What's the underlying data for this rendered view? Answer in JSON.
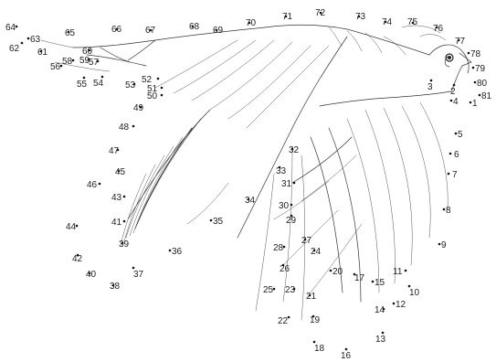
{
  "puzzle": {
    "line_color": "#333333",
    "dot_color": "#111111",
    "labels": [
      "1",
      "2",
      "3",
      "4",
      "5",
      "6",
      "7",
      "8",
      "9",
      "10",
      "11",
      "12",
      "13",
      "14",
      "15",
      "16",
      "17",
      "18",
      "19",
      "20",
      "21",
      "22",
      "23",
      "24",
      "25",
      "26",
      "27",
      "28",
      "29",
      "30",
      "31",
      "32",
      "33",
      "34",
      "35",
      "36",
      "37",
      "38",
      "39",
      "40",
      "41",
      "42",
      "43",
      "44",
      "45",
      "46",
      "47",
      "48",
      "49",
      "50",
      "51",
      "52",
      "53",
      "54",
      "55",
      "56",
      "57",
      "58",
      "59",
      "60",
      "61",
      "62",
      "63",
      "64",
      "65",
      "66",
      "67",
      "68",
      "69",
      "70",
      "71",
      "72",
      "73",
      "74",
      "75",
      "76",
      "77",
      "78",
      "79",
      "80",
      "81"
    ]
  }
}
